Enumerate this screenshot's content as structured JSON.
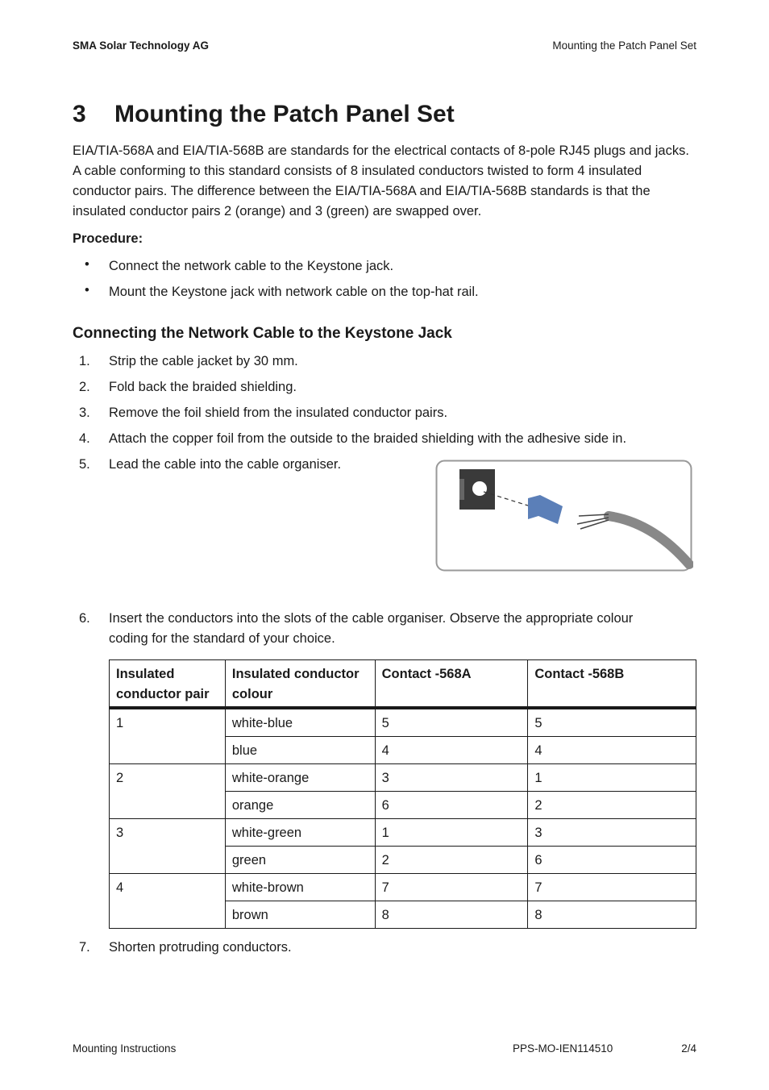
{
  "header": {
    "left": "SMA Solar Technology AG",
    "right": "Mounting the Patch Panel Set"
  },
  "section": {
    "number": "3",
    "title": "Mounting the Patch Panel Set"
  },
  "intro": "EIA/TIA-568A and EIA/TIA-568B are standards for the electrical contacts of 8-pole RJ45 plugs and jacks. A cable conforming to this standard consists of 8 insulated conductors twisted to form 4 insulated conductor pairs. The difference between the EIA/TIA-568A and EIA/TIA-568B standards is that the insulated conductor pairs 2 (orange) and 3 (green) are swapped over.",
  "procedure": {
    "label": "Procedure:",
    "bullets": [
      "Connect the network cable to the Keystone jack.",
      "Mount the Keystone jack with network cable on the top-hat rail."
    ]
  },
  "subheading": "Connecting the Network Cable to the Keystone Jack",
  "steps": [
    {
      "num": "1.",
      "text": "Strip the cable jacket by 30 mm."
    },
    {
      "num": "2.",
      "text": "Fold back the braided shielding."
    },
    {
      "num": "3.",
      "text": "Remove the foil shield from the insulated conductor pairs."
    },
    {
      "num": "4.",
      "text": "Attach the copper foil from the outside to the braided shielding with the adhesive side in."
    },
    {
      "num": "5.",
      "text": "Lead the cable into the cable organiser."
    },
    {
      "num": "6.",
      "text": "Insert the conductors into the slots of the cable organiser. Observe the appropriate colour coding for the standard of your choice."
    },
    {
      "num": "7.",
      "text": "Shorten protruding conductors."
    }
  ],
  "table": {
    "header": [
      "Insulated conductor pair",
      "Insulated conductor colour",
      "Contact -568A",
      "Contact -568B"
    ],
    "pairs": [
      {
        "pair": "1",
        "rows": [
          [
            "white-blue",
            "5",
            "5"
          ],
          [
            "blue",
            "4",
            "4"
          ]
        ]
      },
      {
        "pair": "2",
        "rows": [
          [
            "white-orange",
            "3",
            "1"
          ],
          [
            "orange",
            "6",
            "2"
          ]
        ]
      },
      {
        "pair": "3",
        "rows": [
          [
            "white-green",
            "1",
            "3"
          ],
          [
            "green",
            "2",
            "6"
          ]
        ]
      },
      {
        "pair": "4",
        "rows": [
          [
            "white-brown",
            "7",
            "7"
          ],
          [
            "brown",
            "8",
            "8"
          ]
        ]
      }
    ]
  },
  "footer": {
    "left": "Mounting Instructions",
    "doc_id": "PPS-MO-IEN114510",
    "page": "2/4"
  }
}
